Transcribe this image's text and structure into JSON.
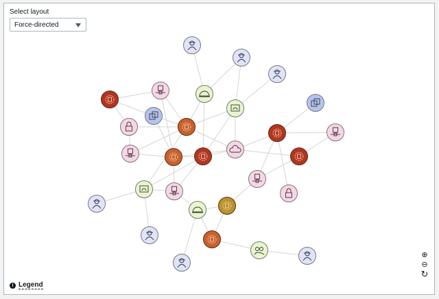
{
  "layout_selector": {
    "label": "Select layout",
    "value": "Force-directed"
  },
  "legend": {
    "label": "Legend",
    "icon": "info-icon"
  },
  "controls": [
    {
      "icon": "zoom-in-icon"
    },
    {
      "icon": "zoom-out-icon"
    },
    {
      "icon": "refresh-icon"
    }
  ],
  "node_types": {
    "user": {
      "fill": "#dfe3fb",
      "icon": "user-icon"
    },
    "red-gear": {
      "fill": "#b2361f",
      "icon": "gear-icon"
    },
    "orange-gear": {
      "fill": "#c8612a",
      "icon": "gear-icon"
    },
    "gold-gear": {
      "fill": "#b8942a",
      "icon": "gear-icon"
    },
    "ip": {
      "fill": "#f8d5e6",
      "icon": "ip-address-icon"
    },
    "lock": {
      "fill": "#f8d5e6",
      "icon": "lock-icon"
    },
    "cloud": {
      "fill": "#f8d5e6",
      "icon": "cloud-lock-icon"
    },
    "helmet": {
      "fill": "#e7f5cd",
      "icon": "helmet-icon"
    },
    "monitor": {
      "fill": "#e7f5cd",
      "icon": "monitor-icon"
    },
    "group": {
      "fill": "#e7f5cd",
      "icon": "users-icon"
    },
    "copy": {
      "fill": "#b4c4f0",
      "icon": "copy-icon"
    }
  },
  "nodes": [
    "user",
    "user",
    "user",
    "red-gear",
    "ip",
    "helmet",
    "monitor",
    "copy",
    "copy",
    "orange-gear",
    "lock",
    "red-gear",
    "ip",
    "ip",
    "orange-gear",
    "red-gear",
    "cloud",
    "red-gear",
    "ip",
    "monitor",
    "ip",
    "lock",
    "user",
    "gold-gear",
    "helmet",
    "user",
    "orange-gear",
    "group",
    "user",
    "user"
  ],
  "edges": [
    [
      0,
      5
    ],
    [
      1,
      6
    ],
    [
      1,
      5
    ],
    [
      2,
      6
    ],
    [
      3,
      4
    ],
    [
      3,
      8
    ],
    [
      3,
      10
    ],
    [
      4,
      9
    ],
    [
      4,
      14
    ],
    [
      5,
      9
    ],
    [
      5,
      15
    ],
    [
      6,
      9
    ],
    [
      6,
      15
    ],
    [
      6,
      16
    ],
    [
      7,
      11
    ],
    [
      8,
      14
    ],
    [
      8,
      9
    ],
    [
      10,
      9
    ],
    [
      10,
      13
    ],
    [
      13,
      14
    ],
    [
      13,
      9
    ],
    [
      14,
      15
    ],
    [
      14,
      20
    ],
    [
      14,
      16
    ],
    [
      15,
      19
    ],
    [
      15,
      16
    ],
    [
      16,
      11
    ],
    [
      16,
      17
    ],
    [
      11,
      12
    ],
    [
      11,
      18
    ],
    [
      11,
      21
    ],
    [
      17,
      12
    ],
    [
      17,
      18
    ],
    [
      19,
      20
    ],
    [
      19,
      9
    ],
    [
      20,
      15
    ],
    [
      20,
      24
    ],
    [
      19,
      22
    ],
    [
      19,
      25
    ],
    [
      24,
      23
    ],
    [
      24,
      29
    ],
    [
      24,
      26
    ],
    [
      23,
      26
    ],
    [
      26,
      27
    ],
    [
      27,
      28
    ],
    [
      18,
      23
    ],
    [
      9,
      16
    ]
  ]
}
